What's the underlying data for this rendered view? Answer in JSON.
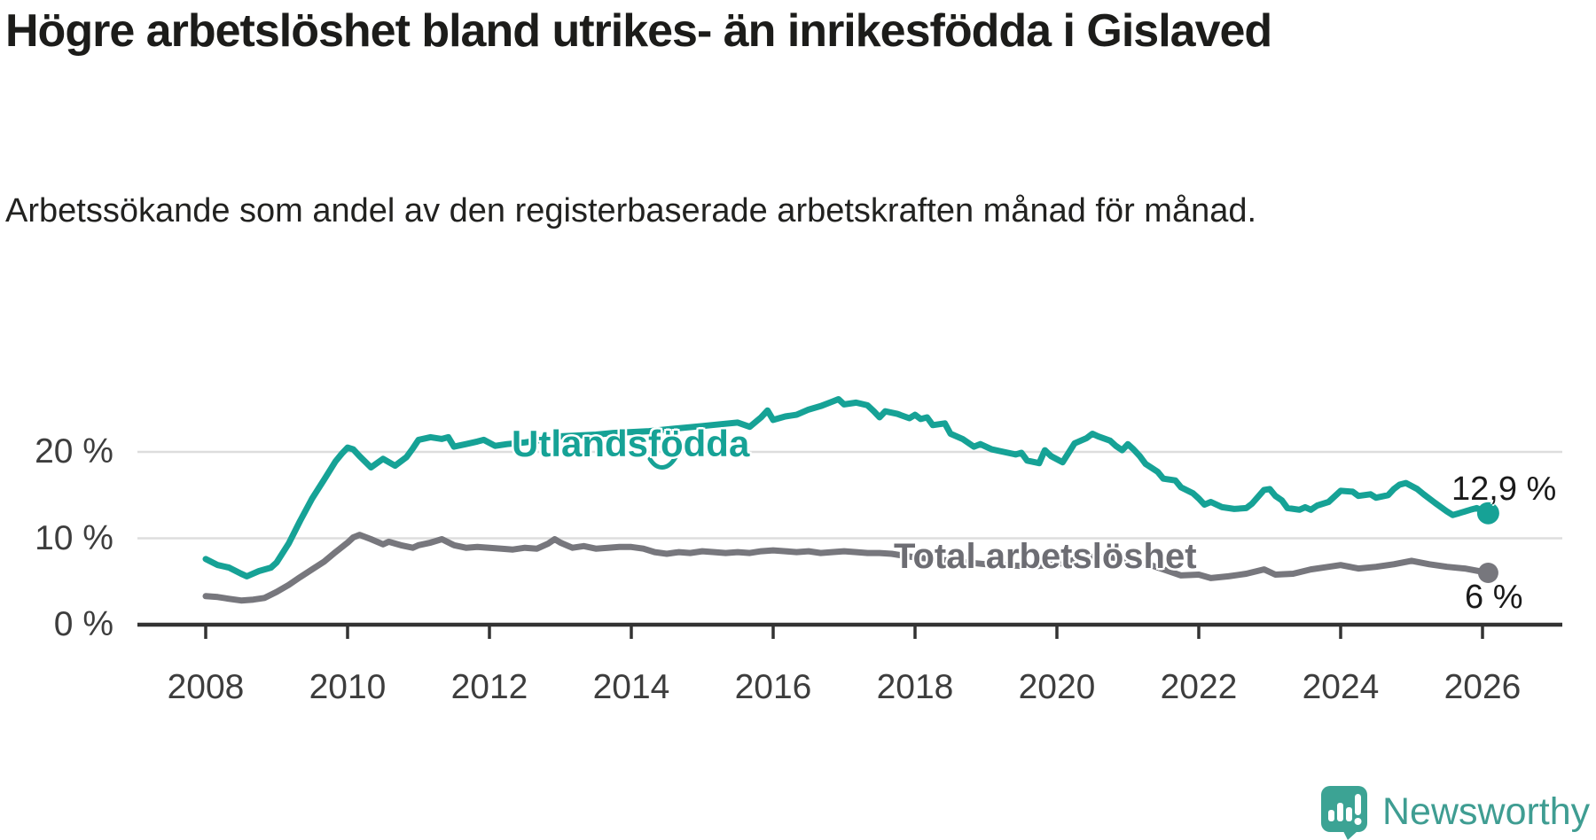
{
  "header": {
    "title": "Högre arbetslöshet bland utrikes- än inrikesfödda i Gislaved",
    "subtitle": "Arbetssökande som andel av den registerbaserade arbetskraften månad för månad."
  },
  "chart_data": {
    "type": "line",
    "title": "Högre arbetslöshet bland utrikes- än inrikesfödda i Gislaved",
    "subtitle": "Arbetssökande som andel av den registerbaserade arbetskraften månad för månad.",
    "xlabel": "",
    "ylabel": "",
    "x_axis": {
      "min": 2008,
      "max": 2026.6,
      "ticks": [
        2008,
        2010,
        2012,
        2014,
        2016,
        2018,
        2020,
        2022,
        2024,
        2026
      ]
    },
    "y_axis": {
      "min": 0,
      "max": 30,
      "grid": true,
      "ticks": [
        {
          "value": 0,
          "label": "0 %"
        },
        {
          "value": 10,
          "label": "10 %"
        },
        {
          "value": 20,
          "label": "20 %"
        }
      ]
    },
    "legend_position": "inline-labels",
    "series": [
      {
        "name": "Utlandsfödda",
        "color": "#16a296",
        "end_label": "12,9 %",
        "end_value": 12.9,
        "points": [
          [
            2008.0,
            7.6
          ],
          [
            2008.17,
            6.9
          ],
          [
            2008.33,
            6.6
          ],
          [
            2008.5,
            5.9
          ],
          [
            2008.58,
            5.6
          ],
          [
            2008.75,
            6.2
          ],
          [
            2008.92,
            6.6
          ],
          [
            2009.0,
            7.2
          ],
          [
            2009.17,
            9.4
          ],
          [
            2009.33,
            12.0
          ],
          [
            2009.5,
            14.6
          ],
          [
            2009.67,
            16.8
          ],
          [
            2009.83,
            18.9
          ],
          [
            2009.92,
            19.8
          ],
          [
            2010.0,
            20.5
          ],
          [
            2010.08,
            20.3
          ],
          [
            2010.17,
            19.5
          ],
          [
            2010.33,
            18.2
          ],
          [
            2010.5,
            19.2
          ],
          [
            2010.67,
            18.4
          ],
          [
            2010.83,
            19.4
          ],
          [
            2010.92,
            20.4
          ],
          [
            2011.0,
            21.4
          ],
          [
            2011.17,
            21.7
          ],
          [
            2011.33,
            21.5
          ],
          [
            2011.42,
            21.7
          ],
          [
            2011.5,
            20.6
          ],
          [
            2011.67,
            20.9
          ],
          [
            2011.83,
            21.2
          ],
          [
            2011.92,
            21.4
          ],
          [
            2012.08,
            20.7
          ],
          [
            2012.25,
            20.9
          ],
          [
            2012.5,
            21.1
          ],
          [
            2012.75,
            21.4
          ],
          [
            2013.0,
            21.8
          ],
          [
            2013.25,
            21.9
          ],
          [
            2013.5,
            22.0
          ],
          [
            2013.75,
            22.2
          ],
          [
            2014.0,
            22.3
          ],
          [
            2014.25,
            22.4
          ],
          [
            2014.5,
            22.6
          ],
          [
            2014.75,
            22.8
          ],
          [
            2015.0,
            23.0
          ],
          [
            2015.25,
            23.2
          ],
          [
            2015.5,
            23.4
          ],
          [
            2015.67,
            22.9
          ],
          [
            2015.83,
            24.0
          ],
          [
            2015.92,
            24.8
          ],
          [
            2016.0,
            23.7
          ],
          [
            2016.17,
            24.1
          ],
          [
            2016.33,
            24.3
          ],
          [
            2016.5,
            24.9
          ],
          [
            2016.67,
            25.3
          ],
          [
            2016.83,
            25.8
          ],
          [
            2016.92,
            26.1
          ],
          [
            2017.0,
            25.5
          ],
          [
            2017.17,
            25.7
          ],
          [
            2017.33,
            25.4
          ],
          [
            2017.42,
            24.7
          ],
          [
            2017.5,
            24.0
          ],
          [
            2017.58,
            24.7
          ],
          [
            2017.75,
            24.4
          ],
          [
            2017.92,
            23.9
          ],
          [
            2018.0,
            24.3
          ],
          [
            2018.08,
            23.8
          ],
          [
            2018.17,
            24.0
          ],
          [
            2018.25,
            23.1
          ],
          [
            2018.42,
            23.3
          ],
          [
            2018.5,
            22.1
          ],
          [
            2018.67,
            21.5
          ],
          [
            2018.83,
            20.6
          ],
          [
            2018.92,
            20.9
          ],
          [
            2019.08,
            20.3
          ],
          [
            2019.25,
            20.0
          ],
          [
            2019.42,
            19.7
          ],
          [
            2019.5,
            19.9
          ],
          [
            2019.58,
            19.0
          ],
          [
            2019.75,
            18.7
          ],
          [
            2019.83,
            20.2
          ],
          [
            2019.92,
            19.5
          ],
          [
            2020.08,
            18.8
          ],
          [
            2020.25,
            21.0
          ],
          [
            2020.42,
            21.6
          ],
          [
            2020.5,
            22.1
          ],
          [
            2020.58,
            21.8
          ],
          [
            2020.75,
            21.3
          ],
          [
            2020.83,
            20.7
          ],
          [
            2020.92,
            20.2
          ],
          [
            2021.0,
            20.9
          ],
          [
            2021.08,
            20.3
          ],
          [
            2021.17,
            19.5
          ],
          [
            2021.25,
            18.6
          ],
          [
            2021.42,
            17.7
          ],
          [
            2021.5,
            16.9
          ],
          [
            2021.67,
            16.7
          ],
          [
            2021.75,
            15.9
          ],
          [
            2021.92,
            15.2
          ],
          [
            2022.0,
            14.6
          ],
          [
            2022.08,
            13.9
          ],
          [
            2022.17,
            14.2
          ],
          [
            2022.33,
            13.6
          ],
          [
            2022.5,
            13.4
          ],
          [
            2022.67,
            13.5
          ],
          [
            2022.75,
            14.0
          ],
          [
            2022.92,
            15.6
          ],
          [
            2023.0,
            15.7
          ],
          [
            2023.08,
            14.9
          ],
          [
            2023.17,
            14.4
          ],
          [
            2023.25,
            13.5
          ],
          [
            2023.42,
            13.3
          ],
          [
            2023.5,
            13.6
          ],
          [
            2023.58,
            13.3
          ],
          [
            2023.67,
            13.8
          ],
          [
            2023.83,
            14.2
          ],
          [
            2024.0,
            15.5
          ],
          [
            2024.17,
            15.4
          ],
          [
            2024.25,
            14.9
          ],
          [
            2024.42,
            15.1
          ],
          [
            2024.5,
            14.7
          ],
          [
            2024.67,
            15.0
          ],
          [
            2024.75,
            15.7
          ],
          [
            2024.83,
            16.2
          ],
          [
            2024.92,
            16.4
          ],
          [
            2025.08,
            15.7
          ],
          [
            2025.17,
            15.1
          ],
          [
            2025.33,
            14.1
          ],
          [
            2025.5,
            13.1
          ],
          [
            2025.58,
            12.7
          ],
          [
            2025.67,
            12.9
          ],
          [
            2025.83,
            13.3
          ],
          [
            2025.92,
            13.5
          ],
          [
            2026.08,
            12.9
          ]
        ]
      },
      {
        "name": "Total arbetslöshet",
        "color": "#77777d",
        "end_label": "6 %",
        "end_value": 6.0,
        "points": [
          [
            2008.0,
            3.3
          ],
          [
            2008.17,
            3.2
          ],
          [
            2008.33,
            3.0
          ],
          [
            2008.5,
            2.8
          ],
          [
            2008.67,
            2.9
          ],
          [
            2008.83,
            3.1
          ],
          [
            2009.0,
            3.8
          ],
          [
            2009.17,
            4.6
          ],
          [
            2009.33,
            5.5
          ],
          [
            2009.5,
            6.4
          ],
          [
            2009.67,
            7.3
          ],
          [
            2009.83,
            8.4
          ],
          [
            2010.0,
            9.5
          ],
          [
            2010.08,
            10.1
          ],
          [
            2010.17,
            10.4
          ],
          [
            2010.33,
            9.9
          ],
          [
            2010.5,
            9.3
          ],
          [
            2010.58,
            9.6
          ],
          [
            2010.75,
            9.2
          ],
          [
            2010.92,
            8.9
          ],
          [
            2011.0,
            9.2
          ],
          [
            2011.17,
            9.5
          ],
          [
            2011.33,
            9.9
          ],
          [
            2011.5,
            9.2
          ],
          [
            2011.67,
            8.9
          ],
          [
            2011.83,
            9.0
          ],
          [
            2012.0,
            8.9
          ],
          [
            2012.17,
            8.8
          ],
          [
            2012.33,
            8.7
          ],
          [
            2012.5,
            8.9
          ],
          [
            2012.67,
            8.8
          ],
          [
            2012.83,
            9.4
          ],
          [
            2012.92,
            9.9
          ],
          [
            2013.0,
            9.5
          ],
          [
            2013.17,
            8.9
          ],
          [
            2013.33,
            9.1
          ],
          [
            2013.5,
            8.8
          ],
          [
            2013.67,
            8.9
          ],
          [
            2013.83,
            9.0
          ],
          [
            2014.0,
            9.0
          ],
          [
            2014.17,
            8.8
          ],
          [
            2014.33,
            8.4
          ],
          [
            2014.5,
            8.2
          ],
          [
            2014.67,
            8.4
          ],
          [
            2014.83,
            8.3
          ],
          [
            2015.0,
            8.5
          ],
          [
            2015.17,
            8.4
          ],
          [
            2015.33,
            8.3
          ],
          [
            2015.5,
            8.4
          ],
          [
            2015.67,
            8.3
          ],
          [
            2015.83,
            8.5
          ],
          [
            2016.0,
            8.6
          ],
          [
            2016.17,
            8.5
          ],
          [
            2016.33,
            8.4
          ],
          [
            2016.5,
            8.5
          ],
          [
            2016.67,
            8.3
          ],
          [
            2016.83,
            8.4
          ],
          [
            2017.0,
            8.5
          ],
          [
            2017.17,
            8.4
          ],
          [
            2017.33,
            8.3
          ],
          [
            2017.5,
            8.3
          ],
          [
            2017.67,
            8.2
          ],
          [
            2017.83,
            8.0
          ],
          [
            2018.0,
            7.8
          ],
          [
            2018.25,
            7.6
          ],
          [
            2018.5,
            7.4
          ],
          [
            2018.75,
            7.2
          ],
          [
            2019.0,
            7.0
          ],
          [
            2019.25,
            6.9
          ],
          [
            2019.5,
            6.8
          ],
          [
            2019.75,
            6.8
          ],
          [
            2020.0,
            7.0
          ],
          [
            2020.25,
            7.5
          ],
          [
            2020.5,
            7.9
          ],
          [
            2020.75,
            7.8
          ],
          [
            2021.0,
            7.6
          ],
          [
            2021.25,
            7.1
          ],
          [
            2021.5,
            6.4
          ],
          [
            2021.75,
            5.7
          ],
          [
            2022.0,
            5.8
          ],
          [
            2022.17,
            5.4
          ],
          [
            2022.42,
            5.6
          ],
          [
            2022.67,
            5.9
          ],
          [
            2022.92,
            6.4
          ],
          [
            2023.08,
            5.8
          ],
          [
            2023.33,
            5.9
          ],
          [
            2023.58,
            6.4
          ],
          [
            2023.83,
            6.7
          ],
          [
            2024.0,
            6.9
          ],
          [
            2024.25,
            6.5
          ],
          [
            2024.5,
            6.7
          ],
          [
            2024.75,
            7.0
          ],
          [
            2025.0,
            7.4
          ],
          [
            2025.25,
            7.0
          ],
          [
            2025.5,
            6.7
          ],
          [
            2025.75,
            6.5
          ],
          [
            2026.08,
            6.0
          ]
        ]
      }
    ]
  },
  "colors": {
    "accent_teal": "#16a296",
    "series_gray": "#77777d",
    "axis": "#333333",
    "grid": "#dddddd",
    "text_dark": "#1c1c1a",
    "logo_teal": "#3f9d92"
  },
  "branding": {
    "logo_text": "Newsworthy",
    "logo_icon": "speech-bubble-bar-chart"
  }
}
